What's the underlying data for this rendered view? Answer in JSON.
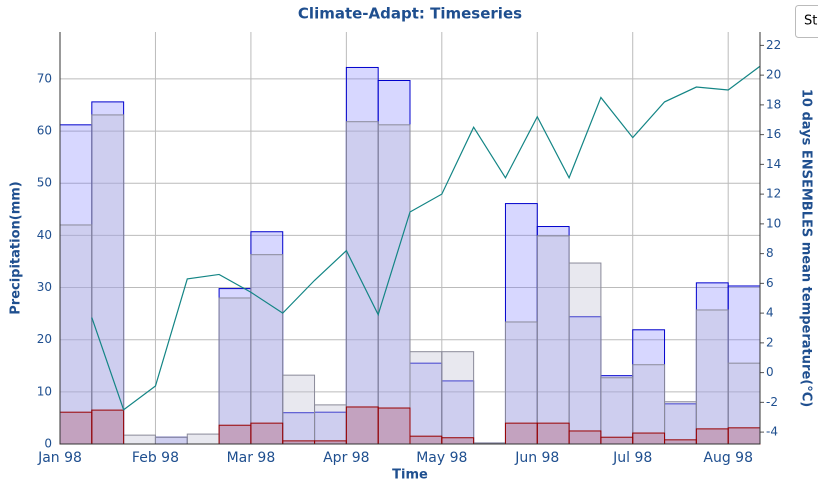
{
  "chart_data": {
    "type": "bar",
    "title": "Climate-Adapt: Timeseries",
    "x_label": "Time",
    "y_label": "Precipitation(mm)",
    "y2_label": "10 days ENSEMBLES mean temperature(°C)",
    "categories": [
      "Jan 98",
      null,
      null,
      "Feb 98",
      null,
      null,
      "Mar 98",
      null,
      null,
      "Apr 98",
      null,
      null,
      "May 98",
      null,
      null,
      "Jun 98",
      null,
      null,
      "Jul 98",
      null,
      null,
      "Aug 98"
    ],
    "series": [
      {
        "type": "bar",
        "color": "#0000cc",
        "fill": "rgba(110,110,255,0.28)",
        "values": [
          61.2,
          65.6,
          0,
          1.3,
          0,
          29.8,
          40.7,
          6,
          6.1,
          72.2,
          69.7,
          15.5,
          12.1,
          0.2,
          46.1,
          41.7,
          24.4,
          13.1,
          21.9,
          7.7,
          30.9,
          30.3
        ]
      },
      {
        "type": "bar",
        "color": "#8a8a99",
        "fill": "rgba(190,190,210,0.35)",
        "values": [
          42,
          63.1,
          1.7,
          1.3,
          1.9,
          28,
          36.3,
          13.2,
          7.5,
          61.8,
          61.2,
          17.7,
          17.7,
          0.2,
          23.4,
          39.9,
          34.7,
          12.7,
          15.2,
          8.1,
          25.7,
          15.5
        ]
      },
      {
        "type": "bar",
        "color": "#990000",
        "fill": "rgba(170,60,80,0.3)",
        "values": [
          6.1,
          6.5,
          0,
          0,
          0,
          3.6,
          4,
          0.6,
          0.6,
          7.1,
          6.9,
          1.5,
          1.2,
          0,
          4,
          4,
          2.5,
          1.3,
          2.1,
          0.8,
          2.9,
          3.1
        ]
      },
      {
        "type": "line",
        "axis": "y2",
        "color": "#138585",
        "values": [
          3.7,
          -2.5,
          -0.9,
          6.3,
          6.6,
          5.4,
          4,
          6.2,
          8.2,
          3.9,
          10.8,
          12,
          16.5,
          13.1,
          17.2,
          13.1,
          18.5,
          15.8,
          18.2,
          19.2,
          19,
          20.6
        ]
      }
    ],
    "ylim": [
      0,
      79
    ],
    "yticks": [
      0,
      10,
      20,
      30,
      40,
      50,
      60,
      70
    ],
    "y2lim": [
      -4.8,
      22.9
    ],
    "y2ticks": [
      -4,
      -2,
      0,
      2,
      4,
      6,
      8,
      10,
      12,
      14,
      16,
      18,
      20,
      22
    ],
    "grid": true
  },
  "button": {
    "label": "St"
  }
}
